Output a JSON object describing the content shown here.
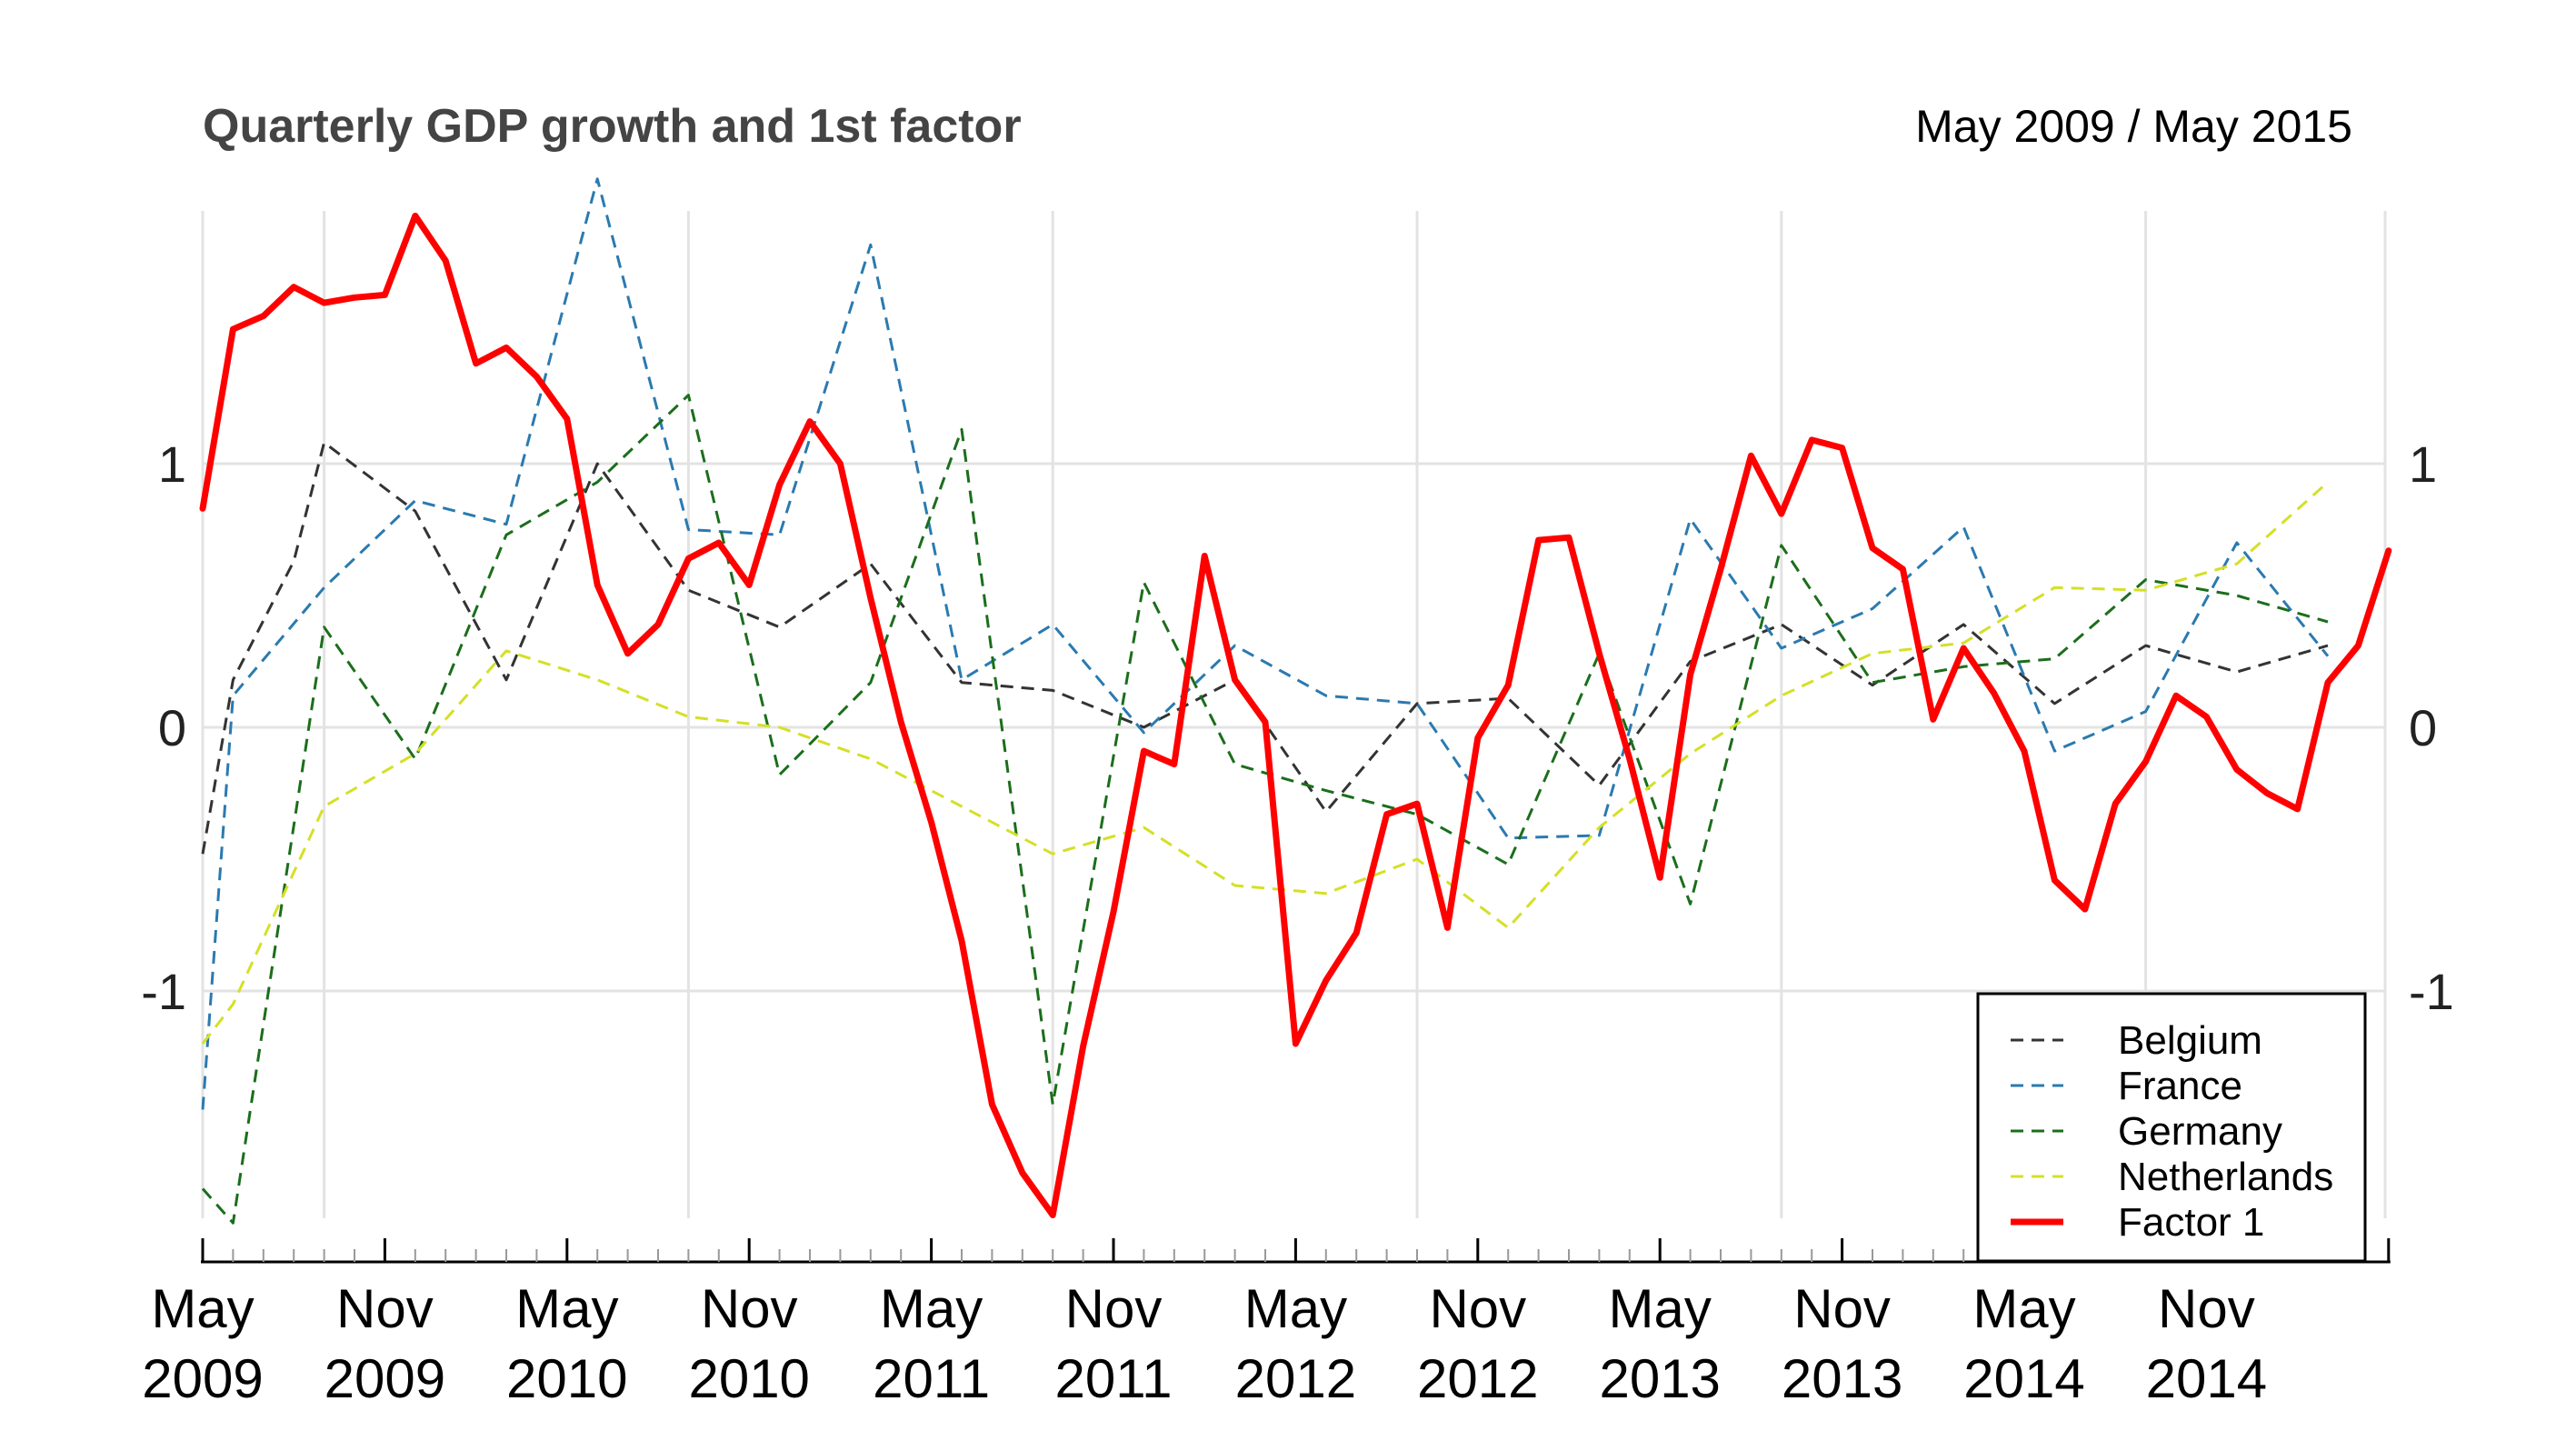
{
  "header": {
    "title": "Quarterly GDP growth and 1st factor",
    "date_range": "May 2009 / May 2015"
  },
  "colors": {
    "Belgium": "#333333",
    "France": "#2a7ab0",
    "Germany": "#1b6e1b",
    "Netherlands": "#d4e026",
    "Factor 1": "#ff0000",
    "grid": "#e3e3e3",
    "axis": "#000000"
  },
  "chart_data": {
    "type": "line",
    "title": "Quarterly GDP growth and 1st factor",
    "subtitle": "May 2009 / May 2015",
    "xlabel": "",
    "ylabel": "",
    "ylim": [
      -1.85,
      2.0
    ],
    "y_ticks": [
      -1,
      0,
      1
    ],
    "y_tick_labels": [
      "-1",
      "0",
      "1"
    ],
    "x_tick_labels": [
      [
        "May",
        "2009"
      ],
      [
        "Nov",
        "2009"
      ],
      [
        "May",
        "2010"
      ],
      [
        "Nov",
        "2010"
      ],
      [
        "May",
        "2011"
      ],
      [
        "Nov",
        "2011"
      ],
      [
        "May",
        "2012"
      ],
      [
        "Nov",
        "2012"
      ],
      [
        "May",
        "2013"
      ],
      [
        "Nov",
        "2013"
      ],
      [
        "May",
        "2014"
      ],
      [
        "Nov",
        "2014"
      ]
    ],
    "x_tick_dates": [
      "2009-05",
      "2009-11",
      "2010-05",
      "2010-11",
      "2011-05",
      "2011-11",
      "2012-05",
      "2012-11",
      "2013-05",
      "2013-11",
      "2014-05",
      "2014-11"
    ],
    "x_range": [
      "2009-05",
      "2015-05"
    ],
    "grid": true,
    "legend_position": "bottom-right",
    "series": [
      {
        "name": "Belgium",
        "style": "dashed",
        "points": [
          [
            "2009-05",
            -0.48
          ],
          [
            "2009-06",
            0.18
          ],
          [
            "2009-08",
            0.63
          ],
          [
            "2009-09",
            1.08
          ],
          [
            "2009-12",
            0.82
          ],
          [
            "2010-03",
            0.18
          ],
          [
            "2010-06",
            1.0
          ],
          [
            "2010-09",
            0.52
          ],
          [
            "2010-12",
            0.38
          ],
          [
            "2011-03",
            0.62
          ],
          [
            "2011-06",
            0.17
          ],
          [
            "2011-09",
            0.14
          ],
          [
            "2011-12",
            0.0
          ],
          [
            "2012-03",
            0.18
          ],
          [
            "2012-06",
            -0.32
          ],
          [
            "2012-09",
            0.09
          ],
          [
            "2012-12",
            0.11
          ],
          [
            "2013-03",
            -0.22
          ],
          [
            "2013-06",
            0.25
          ],
          [
            "2013-09",
            0.39
          ],
          [
            "2013-12",
            0.16
          ],
          [
            "2014-03",
            0.39
          ],
          [
            "2014-06",
            0.09
          ],
          [
            "2014-09",
            0.31
          ],
          [
            "2014-12",
            0.21
          ],
          [
            "2015-03",
            0.31
          ]
        ]
      },
      {
        "name": "France",
        "style": "dashed",
        "points": [
          [
            "2009-05",
            -1.45
          ],
          [
            "2009-06",
            0.12
          ],
          [
            "2009-09",
            0.53
          ],
          [
            "2009-12",
            0.86
          ],
          [
            "2010-03",
            0.77
          ],
          [
            "2010-06",
            2.08
          ],
          [
            "2010-09",
            0.75
          ],
          [
            "2010-12",
            0.73
          ],
          [
            "2011-03",
            1.83
          ],
          [
            "2011-06",
            0.18
          ],
          [
            "2011-09",
            0.39
          ],
          [
            "2011-12",
            -0.02
          ],
          [
            "2012-03",
            0.31
          ],
          [
            "2012-06",
            0.12
          ],
          [
            "2012-09",
            0.09
          ],
          [
            "2012-12",
            -0.42
          ],
          [
            "2013-03",
            -0.41
          ],
          [
            "2013-06",
            0.79
          ],
          [
            "2013-09",
            0.3
          ],
          [
            "2013-12",
            0.45
          ],
          [
            "2014-03",
            0.76
          ],
          [
            "2014-06",
            -0.09
          ],
          [
            "2014-09",
            0.06
          ],
          [
            "2014-12",
            0.7
          ],
          [
            "2015-03",
            0.27
          ]
        ]
      },
      {
        "name": "Germany",
        "style": "dashed",
        "points": [
          [
            "2009-05",
            -1.75
          ],
          [
            "2009-06",
            -1.88
          ],
          [
            "2009-09",
            0.38
          ],
          [
            "2009-12",
            -0.12
          ],
          [
            "2010-03",
            0.73
          ],
          [
            "2010-06",
            0.93
          ],
          [
            "2010-09",
            1.26
          ],
          [
            "2010-12",
            -0.18
          ],
          [
            "2011-03",
            0.17
          ],
          [
            "2011-06",
            1.13
          ],
          [
            "2011-09",
            -1.43
          ],
          [
            "2011-12",
            0.55
          ],
          [
            "2012-03",
            -0.14
          ],
          [
            "2012-06",
            -0.24
          ],
          [
            "2012-09",
            -0.33
          ],
          [
            "2012-12",
            -0.52
          ],
          [
            "2013-03",
            0.28
          ],
          [
            "2013-06",
            -0.67
          ],
          [
            "2013-09",
            0.69
          ],
          [
            "2013-12",
            0.17
          ],
          [
            "2014-03",
            0.23
          ],
          [
            "2014-06",
            0.26
          ],
          [
            "2014-09",
            0.56
          ],
          [
            "2014-12",
            0.5
          ],
          [
            "2015-03",
            0.4
          ]
        ]
      },
      {
        "name": "Netherlands",
        "style": "dashed",
        "points": [
          [
            "2009-05",
            -1.2
          ],
          [
            "2009-06",
            -1.05
          ],
          [
            "2009-09",
            -0.3
          ],
          [
            "2009-12",
            -0.1
          ],
          [
            "2010-03",
            0.29
          ],
          [
            "2010-06",
            0.18
          ],
          [
            "2010-09",
            0.04
          ],
          [
            "2010-12",
            0.0
          ],
          [
            "2011-03",
            -0.12
          ],
          [
            "2011-06",
            -0.3
          ],
          [
            "2011-09",
            -0.48
          ],
          [
            "2011-12",
            -0.38
          ],
          [
            "2012-03",
            -0.6
          ],
          [
            "2012-06",
            -0.63
          ],
          [
            "2012-09",
            -0.5
          ],
          [
            "2012-12",
            -0.76
          ],
          [
            "2013-03",
            -0.38
          ],
          [
            "2013-06",
            -0.1
          ],
          [
            "2013-09",
            0.12
          ],
          [
            "2013-12",
            0.28
          ],
          [
            "2014-03",
            0.32
          ],
          [
            "2014-06",
            0.53
          ],
          [
            "2014-09",
            0.52
          ],
          [
            "2014-12",
            0.62
          ],
          [
            "2015-03",
            0.93
          ]
        ]
      },
      {
        "name": "Factor 1",
        "style": "solid",
        "points": [
          [
            "2009-05",
            0.83
          ],
          [
            "2009-06",
            1.51
          ],
          [
            "2009-07",
            1.56
          ],
          [
            "2009-08",
            1.67
          ],
          [
            "2009-09",
            1.61
          ],
          [
            "2009-10",
            1.63
          ],
          [
            "2009-11",
            1.64
          ],
          [
            "2009-12",
            1.94
          ],
          [
            "2010-01",
            1.77
          ],
          [
            "2010-02",
            1.38
          ],
          [
            "2010-03",
            1.44
          ],
          [
            "2010-04",
            1.33
          ],
          [
            "2010-05",
            1.17
          ],
          [
            "2010-06",
            0.54
          ],
          [
            "2010-07",
            0.28
          ],
          [
            "2010-08",
            0.39
          ],
          [
            "2010-09",
            0.64
          ],
          [
            "2010-10",
            0.7
          ],
          [
            "2010-11",
            0.54
          ],
          [
            "2010-12",
            0.92
          ],
          [
            "2011-01",
            1.16
          ],
          [
            "2011-02",
            1.0
          ],
          [
            "2011-03",
            0.49
          ],
          [
            "2011-04",
            0.02
          ],
          [
            "2011-05",
            -0.36
          ],
          [
            "2011-06",
            -0.81
          ],
          [
            "2011-07",
            -1.43
          ],
          [
            "2011-08",
            -1.69
          ],
          [
            "2011-09",
            -1.85
          ],
          [
            "2011-10",
            -1.21
          ],
          [
            "2011-11",
            -0.7
          ],
          [
            "2011-12",
            -0.09
          ],
          [
            "2012-01",
            -0.14
          ],
          [
            "2012-02",
            0.65
          ],
          [
            "2012-03",
            0.18
          ],
          [
            "2012-04",
            0.02
          ],
          [
            "2012-05",
            -1.2
          ],
          [
            "2012-06",
            -0.96
          ],
          [
            "2012-07",
            -0.78
          ],
          [
            "2012-08",
            -0.33
          ],
          [
            "2012-09",
            -0.29
          ],
          [
            "2012-10",
            -0.76
          ],
          [
            "2012-11",
            -0.04
          ],
          [
            "2012-12",
            0.16
          ],
          [
            "2013-01",
            0.71
          ],
          [
            "2013-02",
            0.72
          ],
          [
            "2013-03",
            0.28
          ],
          [
            "2013-04",
            -0.12
          ],
          [
            "2013-05",
            -0.57
          ],
          [
            "2013-06",
            0.2
          ],
          [
            "2013-07",
            0.6
          ],
          [
            "2013-08",
            1.03
          ],
          [
            "2013-09",
            0.81
          ],
          [
            "2013-10",
            1.09
          ],
          [
            "2013-11",
            1.06
          ],
          [
            "2013-12",
            0.68
          ],
          [
            "2014-01",
            0.6
          ],
          [
            "2014-02",
            0.03
          ],
          [
            "2014-03",
            0.3
          ],
          [
            "2014-04",
            0.13
          ],
          [
            "2014-05",
            -0.09
          ],
          [
            "2014-06",
            -0.58
          ],
          [
            "2014-07",
            -0.69
          ],
          [
            "2014-08",
            -0.29
          ],
          [
            "2014-09",
            -0.13
          ],
          [
            "2014-10",
            0.12
          ],
          [
            "2014-11",
            0.04
          ],
          [
            "2014-12",
            -0.16
          ],
          [
            "2015-01",
            -0.25
          ],
          [
            "2015-02",
            -0.31
          ],
          [
            "2015-03",
            0.17
          ],
          [
            "2015-04",
            0.31
          ],
          [
            "2015-05",
            0.67
          ]
        ]
      }
    ]
  }
}
